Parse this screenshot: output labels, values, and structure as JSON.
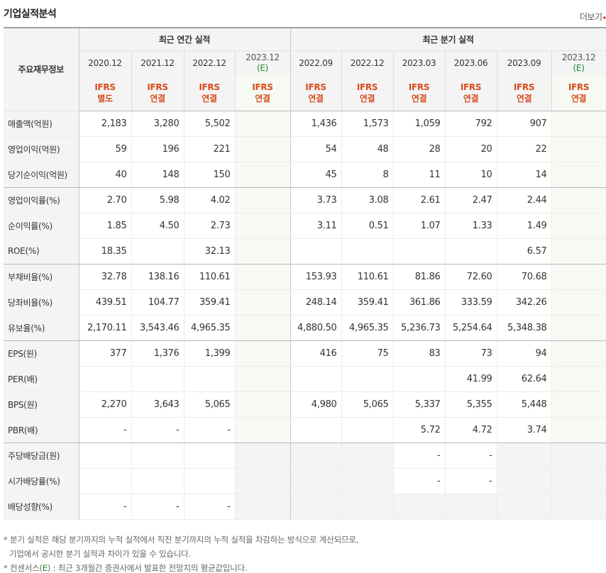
{
  "header": {
    "title": "기업실적분석",
    "more_label": "더보기",
    "more_arrow": "▸"
  },
  "table": {
    "row_header_label": "주요재무정보",
    "group_annual": "최근 연간 실적",
    "group_quarterly": "최근 분기 실적",
    "annual_periods": [
      "2020.12",
      "2021.12",
      "2022.12",
      "2023.12"
    ],
    "annual_est_mark": [
      "",
      "",
      "",
      "(E)"
    ],
    "quarter_periods": [
      "2022.09",
      "2022.12",
      "2023.03",
      "2023.06",
      "2023.09",
      "2023.12"
    ],
    "quarter_est_mark": [
      "",
      "",
      "",
      "",
      "",
      "(E)"
    ],
    "ifrs_top": [
      "IFRS",
      "IFRS",
      "IFRS",
      "IFRS",
      "IFRS",
      "IFRS",
      "IFRS",
      "IFRS",
      "IFRS",
      "IFRS"
    ],
    "ifrs_bottom": [
      "별도",
      "연결",
      "연결",
      "연결",
      "연결",
      "연결",
      "연결",
      "연결",
      "연결",
      "연결"
    ],
    "rows": [
      {
        "label": "매출액(억원)",
        "values": [
          "2,183",
          "3,280",
          "5,502",
          "",
          "1,436",
          "1,573",
          "1,059",
          "792",
          "907",
          ""
        ]
      },
      {
        "label": "영업이익(억원)",
        "values": [
          "59",
          "196",
          "221",
          "",
          "54",
          "48",
          "28",
          "20",
          "22",
          ""
        ]
      },
      {
        "label": "당기순이익(억원)",
        "values": [
          "40",
          "148",
          "150",
          "",
          "45",
          "8",
          "11",
          "10",
          "14",
          ""
        ]
      },
      {
        "label": "영업이익률(%)",
        "values": [
          "2.70",
          "5.98",
          "4.02",
          "",
          "3.73",
          "3.08",
          "2.61",
          "2.47",
          "2.44",
          ""
        ]
      },
      {
        "label": "순이익률(%)",
        "values": [
          "1.85",
          "4.50",
          "2.73",
          "",
          "3.11",
          "0.51",
          "1.07",
          "1.33",
          "1.49",
          ""
        ]
      },
      {
        "label": "ROE(%)",
        "values": [
          "18.35",
          "",
          "32.13",
          "",
          "",
          "",
          "",
          "",
          "6.57",
          ""
        ]
      },
      {
        "label": "부채비율(%)",
        "values": [
          "32.78",
          "138.16",
          "110.61",
          "",
          "153.93",
          "110.61",
          "81.86",
          "72.60",
          "70.68",
          ""
        ]
      },
      {
        "label": "당좌비율(%)",
        "values": [
          "439.51",
          "104.77",
          "359.41",
          "",
          "248.14",
          "359.41",
          "361.86",
          "333.59",
          "342.26",
          ""
        ]
      },
      {
        "label": "유보율(%)",
        "values": [
          "2,170.11",
          "3,543.46",
          "4,965.35",
          "",
          "4,880.50",
          "4,965.35",
          "5,236.73",
          "5,254.64",
          "5,348.38",
          ""
        ]
      },
      {
        "label": "EPS(원)",
        "values": [
          "377",
          "1,376",
          "1,399",
          "",
          "416",
          "75",
          "83",
          "73",
          "94",
          ""
        ]
      },
      {
        "label": "PER(배)",
        "values": [
          "",
          "",
          "",
          "",
          "",
          "",
          "",
          "41.99",
          "62.64",
          ""
        ]
      },
      {
        "label": "BPS(원)",
        "values": [
          "2,270",
          "3,643",
          "5,065",
          "",
          "4,980",
          "5,065",
          "5,337",
          "5,355",
          "5,448",
          ""
        ]
      },
      {
        "label": "PBR(배)",
        "values": [
          "-",
          "-",
          "-",
          "",
          "",
          "",
          "5.72",
          "4.72",
          "3.74",
          ""
        ]
      },
      {
        "label": "주당배당금(원)",
        "values": [
          "",
          "",
          "",
          "",
          "",
          "",
          "-",
          "-",
          "",
          ""
        ]
      },
      {
        "label": "시가배당률(%)",
        "values": [
          "",
          "",
          "",
          "",
          "",
          "",
          "-",
          "-",
          "",
          ""
        ]
      },
      {
        "label": "배당성향(%)",
        "values": [
          "-",
          "-",
          "-",
          "",
          "",
          "",
          "",
          "",
          "",
          ""
        ]
      }
    ]
  },
  "notes": {
    "line1": "* 분기 실적은 해당 분기까지의 누적 실적에서 직전 분기까지의 누적 실적을 차감하는 방식으로 계산되므로,",
    "line2": "기업에서 공시한 분기 실적과 차이가 있을 수 있습니다.",
    "line3_prefix": "* 컨센서스(",
    "line3_e": "E",
    "line3_suffix": ") : 최근 3개월간 증권사에서 발표한 전망치의 평균값입니다."
  },
  "colors": {
    "ifrs": "#d84b1b",
    "estimate": "#1a8a2f",
    "header_bg": "#f4f4f4",
    "estimate_bg": "#f6faf3"
  }
}
